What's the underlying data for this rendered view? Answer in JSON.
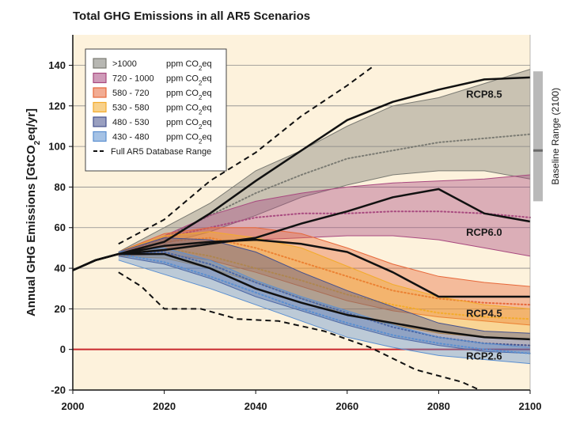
{
  "chart_data": {
    "type": "area",
    "title": "Total GHG Emissions in all AR5 Scenarios",
    "ylabel": "Annual GHG Emissions [GtCO2eq/yr]",
    "xlabel": "",
    "xlim": [
      2000,
      2100
    ],
    "ylim": [
      -20,
      155
    ],
    "x_ticks": [
      2000,
      2020,
      2040,
      2060,
      2080,
      2100
    ],
    "y_ticks": [
      -20,
      0,
      20,
      40,
      60,
      80,
      100,
      120,
      140
    ],
    "grid": true,
    "legend_position": "top-left",
    "colors": {
      "background": "#fdf2dc",
      "zero_line": "#c8282d",
      "baseline_bar": "#b9b9b9"
    },
    "legend": [
      {
        "label": ">1000",
        "unit": "ppm CO2eq",
        "color": "#7b7b73"
      },
      {
        "label": "720 - 1000",
        "unit": "ppm CO2eq",
        "color": "#a8497f"
      },
      {
        "label": "580 - 720",
        "unit": "ppm CO2eq",
        "color": "#e7683a"
      },
      {
        "label": "530 - 580",
        "unit": "ppm CO2eq",
        "color": "#f3ab2b"
      },
      {
        "label": "480 - 530",
        "unit": "ppm CO2eq",
        "color": "#45518d"
      },
      {
        "label": "430 - 480",
        "unit": "ppm CO2eq",
        "color": "#5b8fd0"
      },
      {
        "label": "Full AR5 Database Range",
        "dashed": true
      }
    ],
    "series": [
      {
        "name": ">1000",
        "color": "#7b7b73",
        "upper": [
          [
            2010,
            48
          ],
          [
            2020,
            60
          ],
          [
            2030,
            72
          ],
          [
            2040,
            88
          ],
          [
            2050,
            98
          ],
          [
            2060,
            110
          ],
          [
            2070,
            120
          ],
          [
            2080,
            124
          ],
          [
            2090,
            131
          ],
          [
            2100,
            138
          ]
        ],
        "lower": [
          [
            2010,
            46
          ],
          [
            2020,
            52
          ],
          [
            2030,
            58
          ],
          [
            2040,
            66
          ],
          [
            2050,
            75
          ],
          [
            2060,
            81
          ],
          [
            2070,
            86
          ],
          [
            2080,
            88
          ],
          [
            2090,
            88
          ],
          [
            2100,
            84
          ]
        ],
        "median": [
          [
            2010,
            47
          ],
          [
            2020,
            55
          ],
          [
            2030,
            66
          ],
          [
            2040,
            77
          ],
          [
            2050,
            86
          ],
          [
            2060,
            94
          ],
          [
            2070,
            98
          ],
          [
            2080,
            102
          ],
          [
            2090,
            104
          ],
          [
            2100,
            106
          ]
        ]
      },
      {
        "name": "720 - 1000",
        "color": "#a8497f",
        "upper": [
          [
            2010,
            48
          ],
          [
            2020,
            56
          ],
          [
            2030,
            66
          ],
          [
            2040,
            73
          ],
          [
            2050,
            77
          ],
          [
            2060,
            80
          ],
          [
            2070,
            82
          ],
          [
            2080,
            83
          ],
          [
            2090,
            84
          ],
          [
            2100,
            86
          ]
        ],
        "lower": [
          [
            2010,
            46
          ],
          [
            2020,
            49
          ],
          [
            2030,
            52
          ],
          [
            2040,
            54
          ],
          [
            2050,
            55
          ],
          [
            2060,
            56
          ],
          [
            2070,
            56
          ],
          [
            2080,
            54
          ],
          [
            2090,
            50
          ],
          [
            2100,
            46
          ]
        ],
        "median": [
          [
            2010,
            47
          ],
          [
            2020,
            55
          ],
          [
            2030,
            60
          ],
          [
            2040,
            65
          ],
          [
            2050,
            67
          ],
          [
            2060,
            67
          ],
          [
            2070,
            68
          ],
          [
            2080,
            68
          ],
          [
            2090,
            67
          ],
          [
            2100,
            65
          ]
        ]
      },
      {
        "name": "580 - 720",
        "color": "#e7683a",
        "upper": [
          [
            2010,
            48
          ],
          [
            2020,
            57
          ],
          [
            2030,
            60
          ],
          [
            2040,
            60
          ],
          [
            2050,
            57
          ],
          [
            2060,
            50
          ],
          [
            2070,
            42
          ],
          [
            2080,
            36
          ],
          [
            2090,
            33
          ],
          [
            2100,
            31
          ]
        ],
        "lower": [
          [
            2010,
            46
          ],
          [
            2020,
            47
          ],
          [
            2030,
            44
          ],
          [
            2040,
            38
          ],
          [
            2050,
            31
          ],
          [
            2060,
            24
          ],
          [
            2070,
            19
          ],
          [
            2080,
            16
          ],
          [
            2090,
            14
          ],
          [
            2100,
            12
          ]
        ],
        "median": [
          [
            2010,
            47
          ],
          [
            2020,
            53
          ],
          [
            2030,
            55
          ],
          [
            2040,
            50
          ],
          [
            2050,
            43
          ],
          [
            2060,
            36
          ],
          [
            2070,
            29
          ],
          [
            2080,
            25
          ],
          [
            2090,
            23
          ],
          [
            2100,
            22
          ]
        ]
      },
      {
        "name": "530 - 580",
        "color": "#f3ab2b",
        "upper": [
          [
            2010,
            48
          ],
          [
            2020,
            56
          ],
          [
            2030,
            58
          ],
          [
            2040,
            55
          ],
          [
            2050,
            50
          ],
          [
            2060,
            41
          ],
          [
            2070,
            32
          ],
          [
            2080,
            26
          ],
          [
            2090,
            22
          ],
          [
            2100,
            20
          ]
        ],
        "lower": [
          [
            2010,
            46
          ],
          [
            2020,
            45
          ],
          [
            2030,
            40
          ],
          [
            2040,
            33
          ],
          [
            2050,
            25
          ],
          [
            2060,
            17
          ],
          [
            2070,
            12
          ],
          [
            2080,
            8
          ],
          [
            2090,
            6
          ],
          [
            2100,
            5
          ]
        ],
        "median": [
          [
            2010,
            47
          ],
          [
            2020,
            50
          ],
          [
            2030,
            46
          ],
          [
            2040,
            40
          ],
          [
            2050,
            34
          ],
          [
            2060,
            27
          ],
          [
            2070,
            22
          ],
          [
            2080,
            18
          ],
          [
            2090,
            16
          ],
          [
            2100,
            15
          ]
        ]
      },
      {
        "name": "480 - 530",
        "color": "#45518d",
        "upper": [
          [
            2010,
            48
          ],
          [
            2020,
            55
          ],
          [
            2030,
            54
          ],
          [
            2040,
            48
          ],
          [
            2050,
            38
          ],
          [
            2060,
            29
          ],
          [
            2070,
            21
          ],
          [
            2080,
            13
          ],
          [
            2090,
            9
          ],
          [
            2100,
            8
          ]
        ],
        "lower": [
          [
            2010,
            46
          ],
          [
            2020,
            42
          ],
          [
            2030,
            35
          ],
          [
            2040,
            26
          ],
          [
            2050,
            19
          ],
          [
            2060,
            12
          ],
          [
            2070,
            6
          ],
          [
            2080,
            2
          ],
          [
            2090,
            -1
          ],
          [
            2100,
            -2
          ]
        ],
        "median": [
          [
            2010,
            47
          ],
          [
            2020,
            48
          ],
          [
            2030,
            42
          ],
          [
            2040,
            33
          ],
          [
            2050,
            25
          ],
          [
            2060,
            18
          ],
          [
            2070,
            11
          ],
          [
            2080,
            6
          ],
          [
            2090,
            3
          ],
          [
            2100,
            2
          ]
        ]
      },
      {
        "name": "430 - 480",
        "color": "#5b8fd0",
        "upper": [
          [
            2010,
            48
          ],
          [
            2020,
            50
          ],
          [
            2030,
            44
          ],
          [
            2040,
            34
          ],
          [
            2050,
            26
          ],
          [
            2060,
            19
          ],
          [
            2070,
            12
          ],
          [
            2080,
            6
          ],
          [
            2090,
            3
          ],
          [
            2100,
            1
          ]
        ],
        "lower": [
          [
            2010,
            44
          ],
          [
            2020,
            37
          ],
          [
            2030,
            30
          ],
          [
            2040,
            22
          ],
          [
            2050,
            14
          ],
          [
            2060,
            6
          ],
          [
            2070,
            1
          ],
          [
            2080,
            -3
          ],
          [
            2090,
            -5
          ],
          [
            2100,
            -7
          ]
        ],
        "median": [
          [
            2010,
            47
          ],
          [
            2020,
            43
          ],
          [
            2030,
            36
          ],
          [
            2040,
            28
          ],
          [
            2050,
            20
          ],
          [
            2060,
            13
          ],
          [
            2070,
            7
          ],
          [
            2080,
            3
          ],
          [
            2090,
            0
          ],
          [
            2100,
            -2
          ]
        ]
      }
    ],
    "rcp_lines": [
      {
        "name": "RCP8.5",
        "points": [
          [
            2000,
            39
          ],
          [
            2005,
            44
          ],
          [
            2010,
            47
          ],
          [
            2020,
            53
          ],
          [
            2030,
            67
          ],
          [
            2040,
            83
          ],
          [
            2050,
            98
          ],
          [
            2060,
            113
          ],
          [
            2070,
            122
          ],
          [
            2080,
            128
          ],
          [
            2090,
            133
          ],
          [
            2100,
            134
          ]
        ]
      },
      {
        "name": "RCP6.0",
        "points": [
          [
            2000,
            39
          ],
          [
            2005,
            44
          ],
          [
            2010,
            47
          ],
          [
            2020,
            49
          ],
          [
            2030,
            52
          ],
          [
            2040,
            55
          ],
          [
            2050,
            62
          ],
          [
            2060,
            68
          ],
          [
            2070,
            75
          ],
          [
            2080,
            79
          ],
          [
            2090,
            67
          ],
          [
            2100,
            63
          ]
        ]
      },
      {
        "name": "RCP4.5",
        "points": [
          [
            2000,
            39
          ],
          [
            2005,
            44
          ],
          [
            2010,
            47
          ],
          [
            2020,
            51
          ],
          [
            2030,
            53
          ],
          [
            2040,
            54
          ],
          [
            2050,
            52
          ],
          [
            2060,
            48
          ],
          [
            2070,
            38
          ],
          [
            2080,
            26
          ],
          [
            2090,
            26
          ],
          [
            2100,
            26
          ]
        ]
      },
      {
        "name": "RCP2.6",
        "points": [
          [
            2000,
            39
          ],
          [
            2005,
            44
          ],
          [
            2010,
            47
          ],
          [
            2020,
            47
          ],
          [
            2030,
            40
          ],
          [
            2040,
            30
          ],
          [
            2050,
            23
          ],
          [
            2060,
            17
          ],
          [
            2070,
            13
          ],
          [
            2080,
            9
          ],
          [
            2090,
            6
          ],
          [
            2100,
            5
          ]
        ]
      }
    ],
    "database_range": {
      "upper": [
        [
          2010,
          52
        ],
        [
          2020,
          64
        ],
        [
          2030,
          83
        ],
        [
          2040,
          97
        ],
        [
          2050,
          115
        ],
        [
          2060,
          130
        ],
        [
          2066,
          140
        ]
      ],
      "lower": [
        [
          2010,
          38
        ],
        [
          2015,
          31
        ],
        [
          2020,
          20
        ],
        [
          2028,
          20
        ],
        [
          2036,
          15
        ],
        [
          2045,
          14
        ],
        [
          2055,
          9
        ],
        [
          2065,
          1
        ],
        [
          2075,
          -10
        ],
        [
          2085,
          -16
        ],
        [
          2089,
          -20
        ]
      ]
    },
    "baseline_range_2100": {
      "label": "Baseline Range (2100)",
      "min": 73,
      "max": 137,
      "median": 98
    }
  }
}
